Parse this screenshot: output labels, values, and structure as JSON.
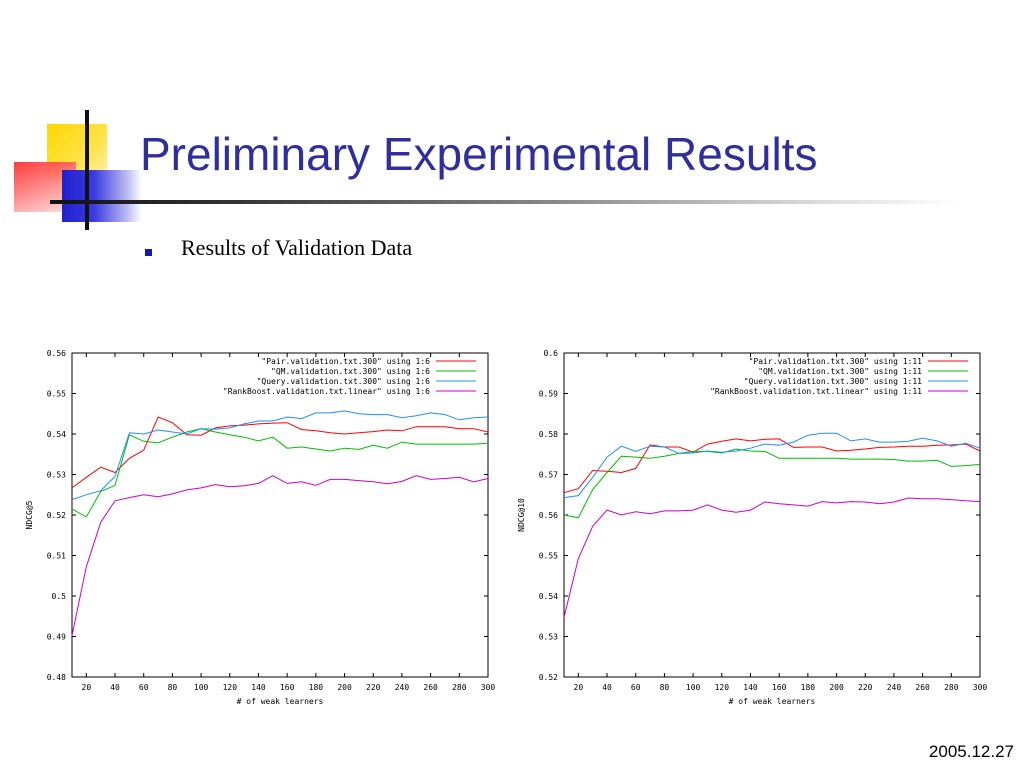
{
  "slide": {
    "title": "Preliminary Experimental Results",
    "bullet": "Results of Validation Data",
    "footer_date": "2005.12.27"
  },
  "colors": {
    "title": "#2e2e9e",
    "bullet": "#1a1aa8",
    "series": [
      "#ff0000",
      "#00c000",
      "#1e90ff",
      "#cc00cc"
    ]
  },
  "chart_data": [
    {
      "type": "line",
      "xlabel": "# of weak learners",
      "ylabel": "NDCG@5",
      "xlim": [
        10,
        300
      ],
      "ylim": [
        0.48,
        0.56
      ],
      "xticks": [
        20,
        40,
        60,
        80,
        100,
        120,
        140,
        160,
        180,
        200,
        220,
        240,
        260,
        280,
        300
      ],
      "xtick_labels": [
        "20",
        "40",
        "60",
        "80",
        "100",
        "120",
        "140",
        "160",
        "180",
        "200",
        "220",
        "240",
        "260",
        "280",
        "300"
      ],
      "yticks": [
        0.48,
        0.49,
        0.5,
        0.51,
        0.52,
        0.53,
        0.54,
        0.55,
        0.56
      ],
      "ytick_labels": [
        "0.48",
        "0.49",
        "0.5",
        "0.51",
        "0.52",
        "0.53",
        "0.54",
        "0.55",
        "0.56"
      ],
      "legend_position": "top-right",
      "grid": false,
      "x": [
        10,
        20,
        30,
        40,
        50,
        60,
        70,
        80,
        90,
        100,
        110,
        120,
        130,
        140,
        150,
        160,
        170,
        180,
        190,
        200,
        210,
        220,
        230,
        240,
        250,
        260,
        270,
        280,
        290,
        300
      ],
      "series": [
        {
          "name": "\"Pair.validation.txt.300\" using 1:6",
          "values": [
            0.5267,
            0.5293,
            0.5318,
            0.5305,
            0.534,
            0.536,
            0.5442,
            0.5428,
            0.5398,
            0.5397,
            0.5415,
            0.542,
            0.5422,
            0.5425,
            0.5427,
            0.5428,
            0.5411,
            0.5408,
            0.5403,
            0.54,
            0.5403,
            0.5406,
            0.541,
            0.5408,
            0.5418,
            0.5418,
            0.5418,
            0.5413,
            0.5413,
            0.5405
          ]
        },
        {
          "name": "\"QM.validation.txt.300\" using 1:6",
          "values": [
            0.5215,
            0.5195,
            0.5258,
            0.5273,
            0.5398,
            0.5382,
            0.5378,
            0.5392,
            0.5405,
            0.5413,
            0.5405,
            0.5398,
            0.5392,
            0.5383,
            0.5392,
            0.5365,
            0.5368,
            0.5363,
            0.5358,
            0.5365,
            0.5362,
            0.5372,
            0.5365,
            0.538,
            0.5375,
            0.5375,
            0.5375,
            0.5375,
            0.5375,
            0.5377
          ]
        },
        {
          "name": "\"Query.validation.txt.300\" using 1:6",
          "values": [
            0.5238,
            0.525,
            0.526,
            0.5295,
            0.5403,
            0.54,
            0.541,
            0.5405,
            0.54,
            0.5413,
            0.5412,
            0.5415,
            0.5425,
            0.5432,
            0.5432,
            0.5442,
            0.5438,
            0.5452,
            0.5452,
            0.5457,
            0.545,
            0.5448,
            0.5448,
            0.544,
            0.5445,
            0.5452,
            0.5448,
            0.5435,
            0.544,
            0.5442
          ]
        },
        {
          "name": "\"RankBoost.validation.txt.linear\" using 1:6",
          "values": [
            0.4902,
            0.5072,
            0.5182,
            0.5235,
            0.5243,
            0.525,
            0.5245,
            0.5252,
            0.5262,
            0.5267,
            0.5275,
            0.527,
            0.5272,
            0.5278,
            0.5297,
            0.5278,
            0.5282,
            0.5273,
            0.5288,
            0.5288,
            0.5285,
            0.5282,
            0.5277,
            0.5283,
            0.5297,
            0.5288,
            0.529,
            0.5293,
            0.5282,
            0.529
          ]
        }
      ]
    },
    {
      "type": "line",
      "xlabel": "# of weak learners",
      "ylabel": "NDCG@10",
      "xlim": [
        10,
        300
      ],
      "ylim": [
        0.52,
        0.6
      ],
      "xticks": [
        20,
        40,
        60,
        80,
        100,
        120,
        140,
        160,
        180,
        200,
        220,
        240,
        260,
        280,
        300
      ],
      "xtick_labels": [
        "20",
        "40",
        "60",
        "80",
        "100",
        "120",
        "140",
        "160",
        "180",
        "200",
        "220",
        "240",
        "260",
        "280",
        "300"
      ],
      "yticks": [
        0.52,
        0.53,
        0.54,
        0.55,
        0.56,
        0.57,
        0.58,
        0.59,
        0.6
      ],
      "ytick_labels": [
        "0.52",
        "0.53",
        "0.54",
        "0.55",
        "0.56",
        "0.57",
        "0.58",
        "0.59",
        "0.6"
      ],
      "legend_position": "top-right",
      "grid": false,
      "x": [
        10,
        20,
        30,
        40,
        50,
        60,
        70,
        80,
        90,
        100,
        110,
        120,
        130,
        140,
        150,
        160,
        170,
        180,
        190,
        200,
        210,
        220,
        230,
        240,
        250,
        260,
        270,
        280,
        290,
        300
      ],
      "series": [
        {
          "name": "\"Pair.validation.txt.300\" using 1:11",
          "values": [
            0.5655,
            0.5665,
            0.571,
            0.5708,
            0.5705,
            0.5715,
            0.5773,
            0.5768,
            0.5768,
            0.5755,
            0.5775,
            0.5782,
            0.5788,
            0.5783,
            0.5787,
            0.5788,
            0.5767,
            0.5768,
            0.5768,
            0.5758,
            0.576,
            0.5763,
            0.5767,
            0.5768,
            0.577,
            0.577,
            0.5772,
            0.5773,
            0.5775,
            0.5758
          ]
        },
        {
          "name": "\"QM.validation.txt.300\" using 1:11",
          "values": [
            0.56,
            0.5593,
            0.5663,
            0.5705,
            0.5745,
            0.5743,
            0.574,
            0.5745,
            0.5752,
            0.5757,
            0.5757,
            0.5753,
            0.5763,
            0.5758,
            0.5757,
            0.574,
            0.574,
            0.574,
            0.574,
            0.574,
            0.5738,
            0.5738,
            0.5738,
            0.5737,
            0.5733,
            0.5733,
            0.5735,
            0.572,
            0.5722,
            0.5725
          ]
        },
        {
          "name": "\"Query.validation.txt.300\" using 1:11",
          "values": [
            0.5643,
            0.5648,
            0.5693,
            0.5743,
            0.577,
            0.5757,
            0.577,
            0.5768,
            0.5752,
            0.5753,
            0.5758,
            0.5755,
            0.5758,
            0.5765,
            0.5775,
            0.5772,
            0.578,
            0.5797,
            0.5802,
            0.5802,
            0.5783,
            0.5788,
            0.578,
            0.578,
            0.5782,
            0.579,
            0.5783,
            0.577,
            0.5777,
            0.5765
          ]
        },
        {
          "name": "\"RankBoost.validation.txt.linear\" using 1:11",
          "values": [
            0.5347,
            0.5492,
            0.5572,
            0.5612,
            0.56,
            0.5608,
            0.5603,
            0.561,
            0.561,
            0.5612,
            0.5625,
            0.5612,
            0.5607,
            0.5612,
            0.5632,
            0.5628,
            0.5625,
            0.5622,
            0.5633,
            0.563,
            0.5633,
            0.5632,
            0.5628,
            0.5632,
            0.5642,
            0.564,
            0.564,
            0.5638,
            0.5635,
            0.5633
          ]
        }
      ]
    }
  ]
}
